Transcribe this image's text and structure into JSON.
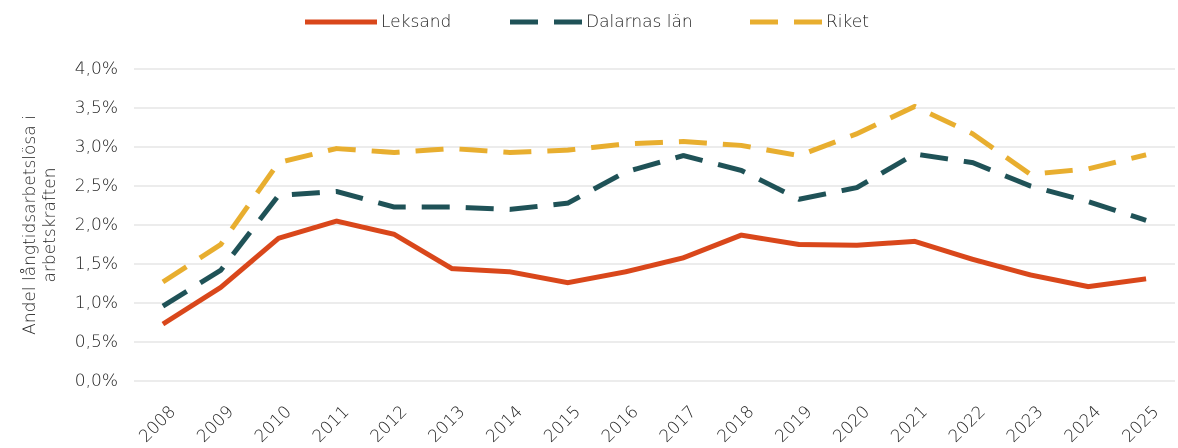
{
  "chart_data": {
    "type": "line",
    "ylabel": [
      "Andel långtidsarbetslösa i",
      "arbetskraften"
    ],
    "categories": [
      "2008",
      "2009",
      "2010",
      "2011",
      "2012",
      "2013",
      "2014",
      "2015",
      "2016",
      "2017",
      "2018",
      "2019",
      "2020",
      "2021",
      "2022",
      "2023",
      "2024",
      "2025"
    ],
    "series": [
      {
        "name": "Leksand",
        "color": "#d9471b",
        "dash": "solid",
        "values": [
          0.73,
          1.2,
          1.83,
          2.05,
          1.88,
          1.44,
          1.4,
          1.26,
          1.4,
          1.58,
          1.87,
          1.75,
          1.74,
          1.79,
          1.56,
          1.36,
          1.21,
          1.31
        ]
      },
      {
        "name": "Dalarnas län",
        "color": "#1f5257",
        "dash": "dashed",
        "values": [
          0.96,
          1.42,
          2.38,
          2.43,
          2.23,
          2.23,
          2.2,
          2.28,
          2.68,
          2.89,
          2.7,
          2.33,
          2.48,
          2.91,
          2.8,
          2.5,
          2.3,
          2.06
        ]
      },
      {
        "name": "Riket",
        "color": "#e8ae2f",
        "dash": "dashed",
        "values": [
          1.27,
          1.75,
          2.8,
          2.98,
          2.93,
          2.98,
          2.93,
          2.96,
          3.04,
          3.07,
          3.02,
          2.89,
          3.17,
          3.52,
          3.17,
          2.65,
          2.72,
          2.9
        ]
      }
    ],
    "ylim": [
      0,
      4
    ],
    "yticks": [
      {
        "value": 0,
        "label": "0,0%"
      },
      {
        "value": 0.5,
        "label": "0,5%"
      },
      {
        "value": 1,
        "label": "1,0%"
      },
      {
        "value": 1.5,
        "label": "1,5%"
      },
      {
        "value": 2,
        "label": "2,0%"
      },
      {
        "value": 2.5,
        "label": "2,5%"
      },
      {
        "value": 3,
        "label": "3,0%"
      },
      {
        "value": 3.5,
        "label": "3,5%"
      },
      {
        "value": 4,
        "label": "4,0%"
      }
    ],
    "grid": true,
    "legend": "top"
  }
}
